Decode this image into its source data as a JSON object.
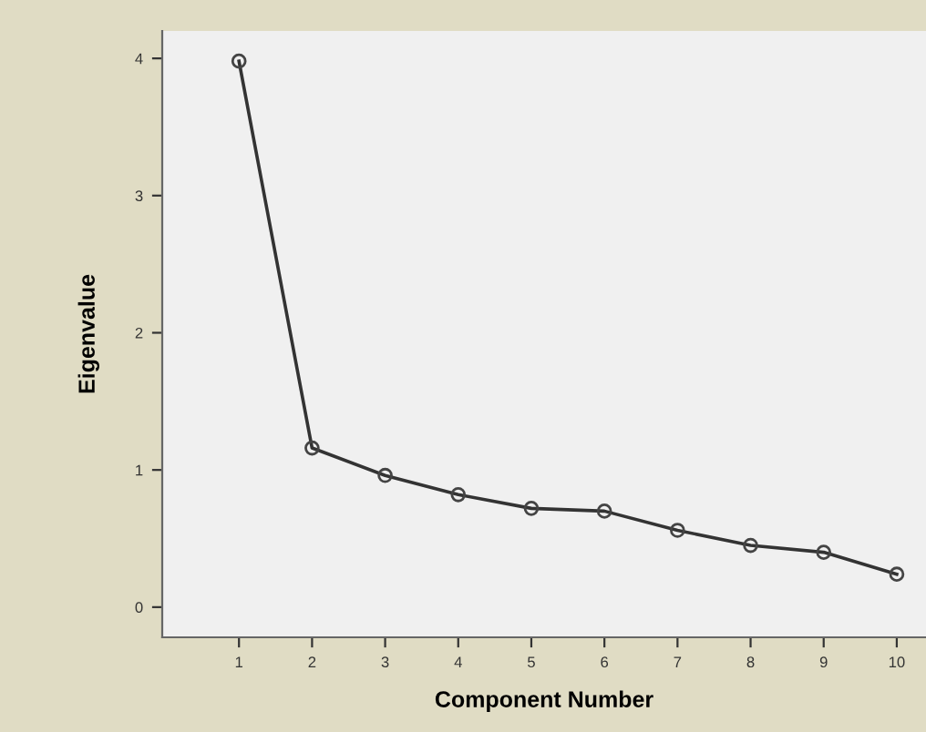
{
  "chart_data": {
    "type": "line",
    "xlabel": "Component Number",
    "ylabel": "Eigenvalue",
    "x": [
      1,
      2,
      3,
      4,
      5,
      6,
      7,
      8,
      9,
      10
    ],
    "series": [
      {
        "color": "#333333",
        "values": [
          3.98,
          1.16,
          0.96,
          0.82,
          0.72,
          0.7,
          0.56,
          0.45,
          0.4,
          0.24
        ]
      }
    ],
    "xlim": [
      -0.05,
      10.4
    ],
    "xticks": [
      1,
      2,
      3,
      4,
      5,
      6,
      7,
      8,
      9,
      10
    ],
    "ylim": [
      -0.22,
      4.2
    ],
    "yticks": [
      0,
      1,
      2,
      3,
      4
    ],
    "marker": "circle",
    "line_style": "solid",
    "grid": false,
    "legend": false
  }
}
